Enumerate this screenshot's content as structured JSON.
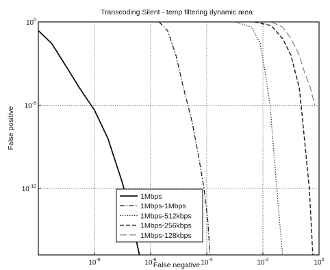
{
  "chart_data": {
    "type": "line",
    "title": "Transcoding Silent - temp filtering dynamic area",
    "xlabel": "False negative",
    "ylabel": "False positive",
    "xscale": "log",
    "yscale": "log",
    "xlim": [
      1e-10,
      1
    ],
    "ylim": [
      1e-14,
      1
    ],
    "grid": true,
    "legend_position": "bottom-center",
    "x_ticks": [
      {
        "base": "10",
        "exp": "-8",
        "value": 1e-08
      },
      {
        "base": "10",
        "exp": "-6",
        "value": 1e-06
      },
      {
        "base": "10",
        "exp": "-4",
        "value": 0.0001
      },
      {
        "base": "10",
        "exp": "-2",
        "value": 0.01
      },
      {
        "base": "10",
        "exp": "0",
        "value": 1
      }
    ],
    "y_ticks": [
      {
        "base": "10",
        "exp": "0",
        "value": 1
      },
      {
        "base": "10",
        "exp": "-5",
        "value": 1e-05
      },
      {
        "base": "10",
        "exp": "-10",
        "value": 1e-10
      }
    ],
    "series": [
      {
        "name": "1Mbps",
        "dash": "solid",
        "x": [
          1e-10,
          3e-10,
          1e-09,
          3e-09,
          1e-08,
          3e-08,
          1e-07,
          2e-07,
          4e-07
        ],
        "y": [
          0.3,
          0.05,
          0.002,
          0.0001,
          5e-06,
          1e-07,
          2e-10,
          2e-12,
          1e-14
        ]
      },
      {
        "name": "1Mbps-1Mbps",
        "dash": "dashdot",
        "x": [
          2e-06,
          4e-06,
          8e-06,
          1.5e-05,
          3e-05,
          5e-05,
          8e-05,
          0.00011,
          0.00013
        ],
        "y": [
          1,
          0.3,
          0.01,
          0.0001,
          1e-06,
          1e-08,
          1e-10,
          1e-12,
          1e-14
        ]
      },
      {
        "name": "1Mbps-512kbps",
        "dash": "dotted",
        "x": [
          0.001,
          0.004,
          0.008,
          0.012,
          0.018,
          0.025,
          0.035,
          0.05
        ],
        "y": [
          1,
          0.5,
          0.05,
          0.001,
          1e-05,
          1e-08,
          1e-11,
          1e-14
        ]
      },
      {
        "name": "1Mbps-256kbps",
        "dash": "dashed",
        "x": [
          0.005,
          0.02,
          0.05,
          0.1,
          0.2,
          0.3,
          0.45,
          0.6
        ],
        "y": [
          1,
          0.6,
          0.1,
          0.01,
          0.0001,
          1e-07,
          1e-10,
          1e-14
        ]
      },
      {
        "name": "1Mbps-128kbps",
        "dash": "longdash",
        "x": [
          0.02,
          0.05,
          0.1,
          0.2,
          0.3,
          0.5,
          0.7
        ],
        "y": [
          1,
          0.5,
          0.1,
          0.01,
          0.001,
          0.0001,
          1e-05
        ]
      }
    ]
  }
}
